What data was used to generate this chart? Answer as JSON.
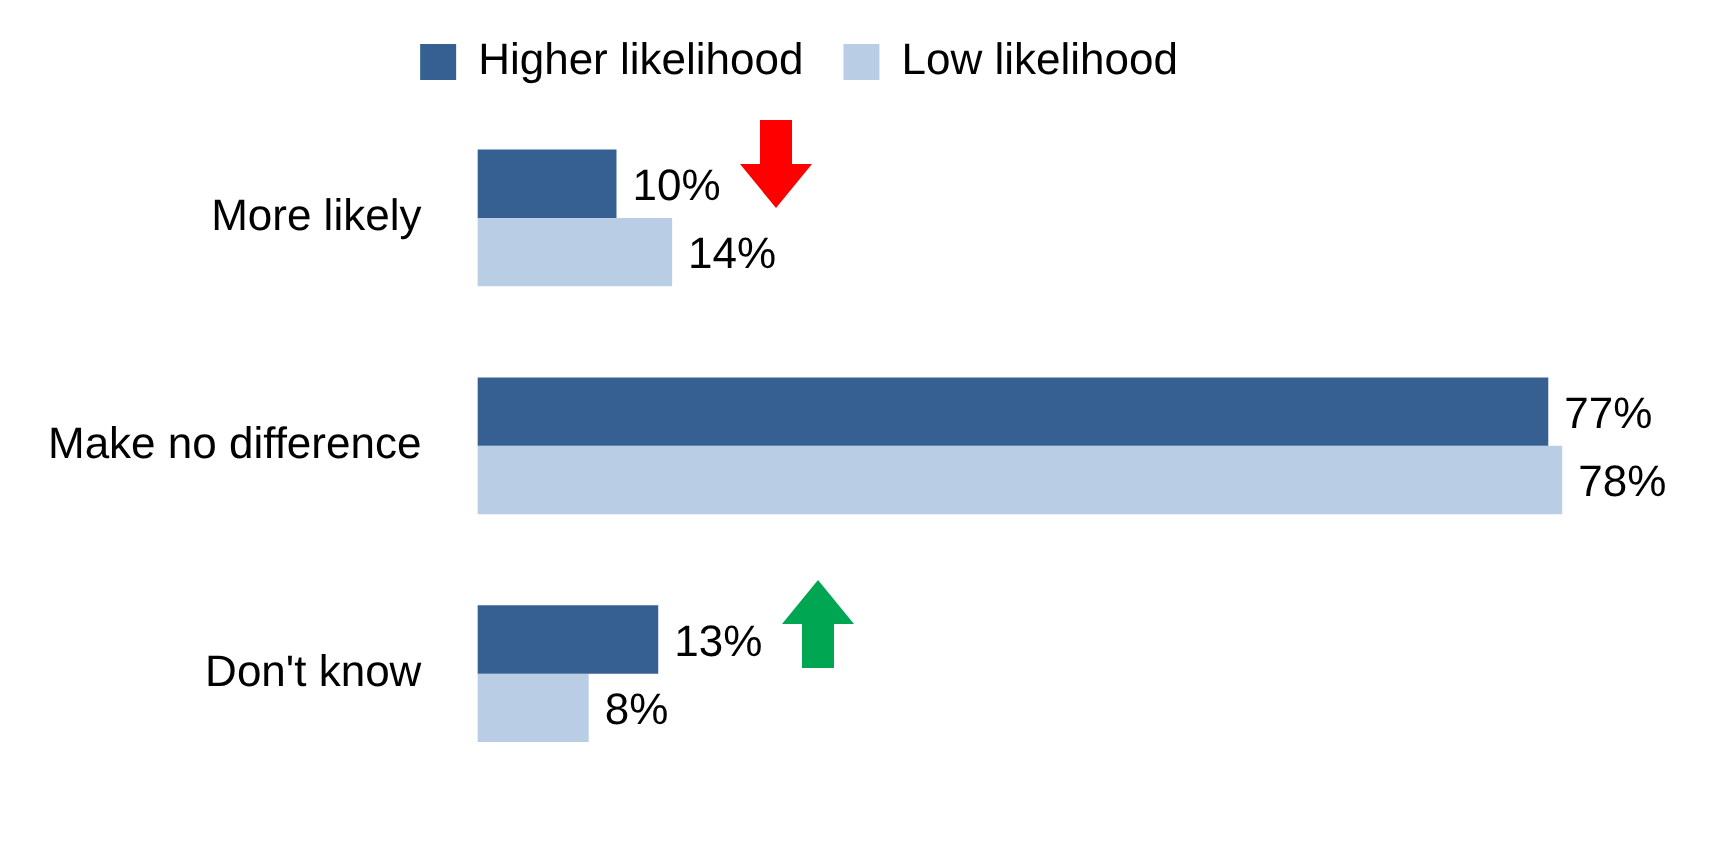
{
  "chart_data": {
    "type": "bar",
    "orientation": "horizontal",
    "categories": [
      "More likely",
      "Make no difference",
      "Don't know"
    ],
    "series": [
      {
        "name": "Higher likelihood",
        "color": "#366092",
        "values": [
          10,
          77,
          13
        ],
        "value_labels": [
          "10%",
          "77%",
          "13%"
        ]
      },
      {
        "name": "Low likelihood",
        "color": "#b9cde5",
        "values": [
          14,
          78,
          8
        ],
        "value_labels": [
          "14%",
          "78%",
          "8%"
        ]
      }
    ],
    "tick_labels": "y",
    "legend": "top",
    "grid": false
  }
}
